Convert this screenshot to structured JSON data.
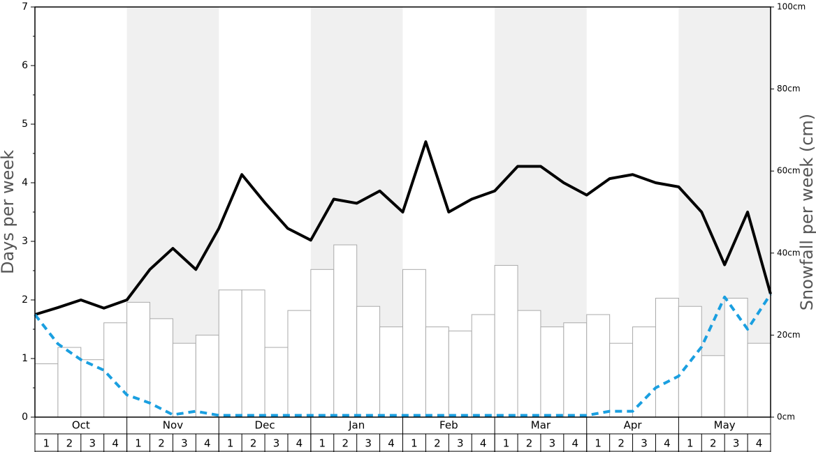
{
  "chart_data": {
    "type": "bar_line",
    "ylabel": "Days per week",
    "y2label": "Snowfall per week (cm)",
    "months": [
      "Oct",
      "Nov",
      "Dec",
      "Jan",
      "Feb",
      "Mar",
      "Apr",
      "May"
    ],
    "categories": [
      "1",
      "2",
      "3",
      "4",
      "1",
      "2",
      "3",
      "4",
      "1",
      "2",
      "3",
      "4",
      "1",
      "2",
      "3",
      "4",
      "1",
      "2",
      "3",
      "4",
      "1",
      "2",
      "3",
      "4",
      "1",
      "2",
      "3",
      "4",
      "1",
      "2",
      "3",
      "4"
    ],
    "ylim": [
      0,
      7
    ],
    "yticks": [
      0,
      1,
      2,
      3,
      4,
      5,
      6,
      7
    ],
    "y2lim": [
      0,
      100
    ],
    "y2ticks": [
      {
        "value": 0,
        "label": "0cm"
      },
      {
        "value": 20,
        "label": "20cm"
      },
      {
        "value": 40,
        "label": "40cm"
      },
      {
        "value": 60,
        "label": "60cm"
      },
      {
        "value": 80,
        "label": "80cm"
      },
      {
        "value": 100,
        "label": "100cm"
      }
    ],
    "xlim": [
      0,
      32
    ],
    "bars": {
      "axis": "y2",
      "color": "#ffffff",
      "values": [
        13,
        17,
        14,
        23,
        28,
        24,
        18,
        20,
        31,
        31,
        17,
        26,
        36,
        42,
        27,
        22,
        36,
        22,
        21,
        25,
        37,
        26,
        22,
        23,
        25,
        18,
        22,
        29,
        27,
        15,
        29,
        18
      ]
    },
    "lines": [
      {
        "color": "#000000",
        "dashed": false,
        "x": [
          0,
          1,
          2,
          3,
          4,
          5,
          6,
          7,
          8,
          9,
          10,
          11,
          12,
          13,
          14,
          15,
          16,
          17,
          18,
          19,
          20,
          21,
          22,
          23,
          24,
          25,
          26,
          27,
          28,
          29,
          30,
          31,
          32
        ],
        "values": [
          1.75,
          1.87,
          2.0,
          1.86,
          2.0,
          2.52,
          2.88,
          2.52,
          3.22,
          4.14,
          3.66,
          3.22,
          3.02,
          3.72,
          3.65,
          3.86,
          3.5,
          4.7,
          3.5,
          3.72,
          3.86,
          4.28,
          4.28,
          4.0,
          3.79,
          4.07,
          4.14,
          4.0,
          3.93,
          3.5,
          2.6,
          3.5,
          2.1
        ]
      },
      {
        "color": "#1a9fe0",
        "dashed": true,
        "x": [
          0,
          1,
          2,
          3,
          4,
          5,
          6,
          7,
          8,
          9,
          10,
          11,
          12,
          13,
          14,
          15,
          16,
          17,
          18,
          19,
          20,
          21,
          22,
          23,
          24,
          25,
          26,
          27,
          28,
          29,
          30,
          31,
          32
        ],
        "values": [
          1.75,
          1.25,
          0.98,
          0.8,
          0.38,
          0.24,
          0.04,
          0.1,
          0.03,
          0.03,
          0.03,
          0.03,
          0.03,
          0.03,
          0.03,
          0.03,
          0.03,
          0.03,
          0.03,
          0.03,
          0.03,
          0.03,
          0.03,
          0.03,
          0.03,
          0.1,
          0.1,
          0.5,
          0.7,
          1.2,
          2.05,
          1.5,
          2.1
        ]
      }
    ],
    "shade_alternate_months": true
  }
}
